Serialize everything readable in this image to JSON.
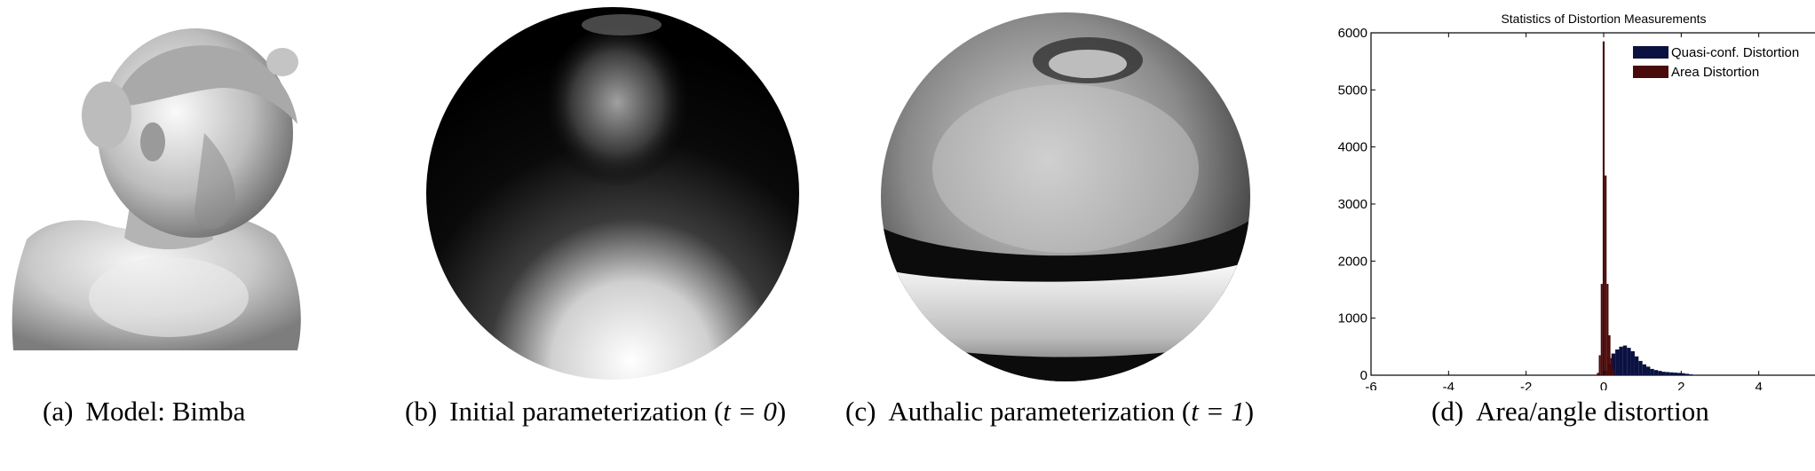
{
  "figure": {
    "captions": [
      {
        "label": "(a)",
        "text_before": "Model: Bimba",
        "math": "",
        "text_after": ""
      },
      {
        "label": "(b)",
        "text_before": "Initial parameterization (",
        "math": "t = 0",
        "text_after": ")"
      },
      {
        "label": "(c)",
        "text_before": "Authalic parameterization (",
        "math": "t = 1",
        "text_after": ")"
      },
      {
        "label": "(d)",
        "text_before": "Area/angle distortion",
        "math": "",
        "text_after": ""
      }
    ]
  },
  "chart_data": {
    "type": "bar",
    "title": "Statistics of Distortion Measurements",
    "xlabel": "",
    "ylabel": "",
    "xlim": [
      -6,
      6
    ],
    "ylim": [
      0,
      6000
    ],
    "xticks": [
      -6,
      -4,
      -2,
      0,
      2,
      4,
      6
    ],
    "yticks": [
      0,
      1000,
      2000,
      3000,
      4000,
      5000,
      6000
    ],
    "grid": false,
    "legend_position": "top-right",
    "colors": {
      "quasi": "#0b1140",
      "area": "#4a0a0a"
    },
    "series": [
      {
        "name": "Quasi-conf. Distortion",
        "x": [
          0.05,
          0.15,
          0.25,
          0.35,
          0.45,
          0.55,
          0.65,
          0.75,
          0.85,
          0.95,
          1.05,
          1.15,
          1.25,
          1.35,
          1.45,
          1.55,
          1.65,
          1.75,
          1.85,
          1.95,
          2.05,
          2.15,
          2.25,
          2.35
        ],
        "values": [
          80,
          200,
          380,
          450,
          500,
          520,
          480,
          420,
          330,
          250,
          190,
          150,
          110,
          90,
          75,
          60,
          55,
          50,
          45,
          40,
          35,
          25,
          15,
          8
        ]
      },
      {
        "name": "Area Distortion",
        "x": [
          -0.15,
          -0.1,
          -0.05,
          0.0,
          0.05,
          0.1,
          0.15,
          0.2,
          0.25
        ],
        "values": [
          40,
          350,
          1600,
          5850,
          3500,
          1600,
          700,
          300,
          100
        ]
      }
    ]
  }
}
